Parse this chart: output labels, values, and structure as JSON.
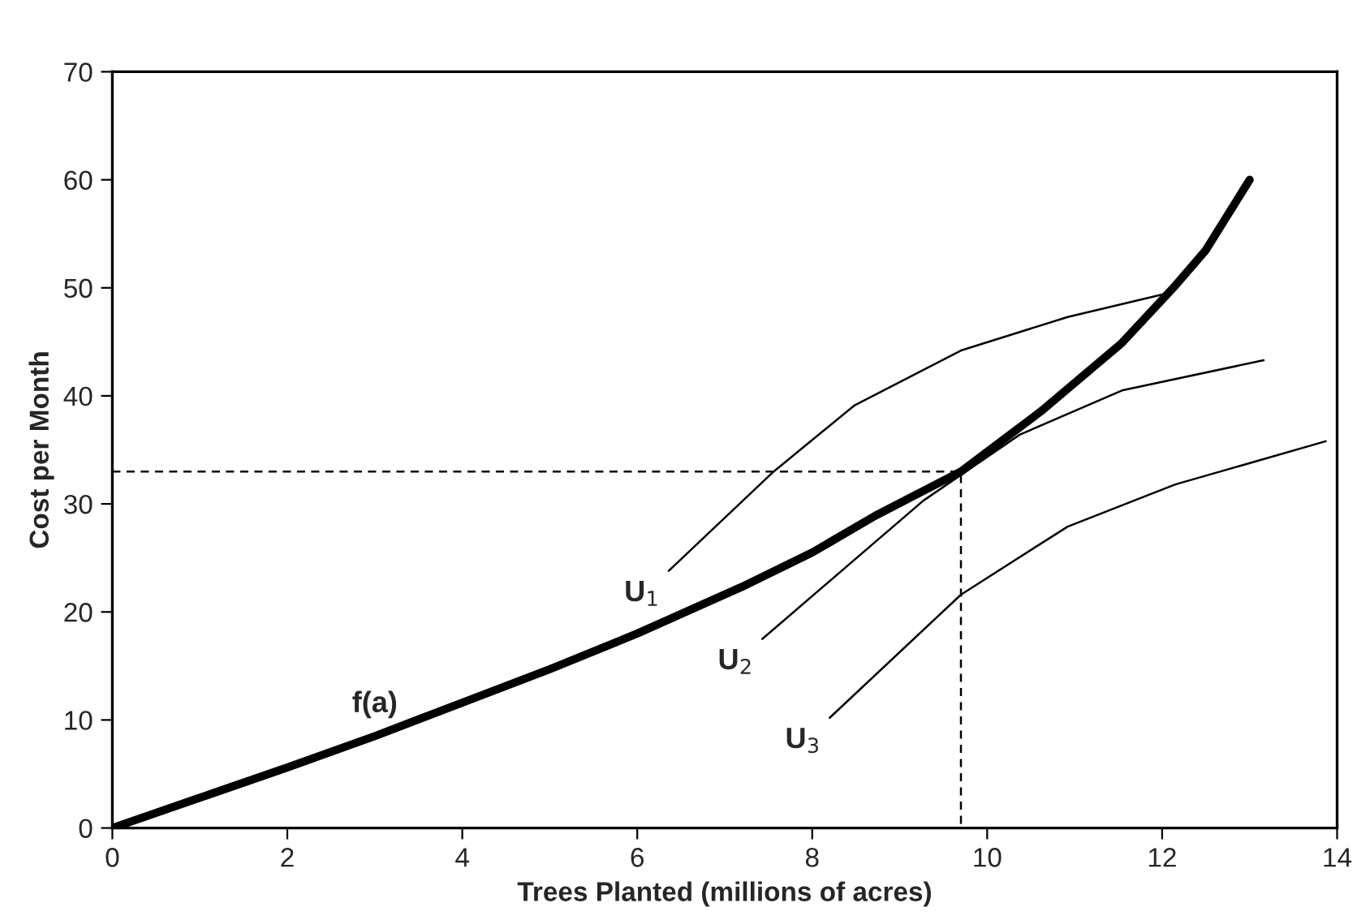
{
  "chart_data": {
    "type": "line",
    "xlabel": "Trees Planted (millions of acres)",
    "ylabel": "Cost per Month",
    "xlim": [
      0,
      14
    ],
    "xticks": [
      0,
      2,
      4,
      6,
      8,
      10,
      12,
      14
    ],
    "ylim": [
      0,
      70
    ],
    "yticks": [
      0,
      10,
      20,
      30,
      40,
      50,
      60,
      70
    ],
    "grid": false,
    "marker": "none",
    "series": [
      {
        "name": "f(a)",
        "color": "#000000",
        "x": [
          0,
          1,
          2,
          3,
          4,
          5,
          6,
          7.19,
          8,
          8.72,
          9.7,
          10.62,
          11.54,
          12.15,
          12.5,
          13
        ],
        "values": [
          0,
          2.8,
          5.6,
          8.5,
          11.6,
          14.7,
          18.0,
          22.3,
          25.5,
          28.9,
          33,
          38.6,
          44.9,
          50.2,
          53.5,
          60
        ]
      },
      {
        "name": "U$_{1}$",
        "color": "#000000",
        "x": [
          6.36,
          7.56,
          8.48,
          9.7,
          10.92,
          12.06
        ],
        "values": [
          23.8,
          33.0,
          39.1,
          44.2,
          47.3,
          49.5
        ]
      },
      {
        "name": "U$_{2}$",
        "color": "#000000",
        "x": [
          7.43,
          9.27,
          10.37,
          11.54,
          13.16
        ],
        "values": [
          17.5,
          30.3,
          36.4,
          40.5,
          43.3
        ]
      },
      {
        "name": "U$_{3}$",
        "color": "#000000",
        "x": [
          8.2,
          9.7,
          10.92,
          12.15,
          13.87
        ],
        "values": [
          10.2,
          21.6,
          27.9,
          31.8,
          35.8
        ]
      },
      {
        "color": "#000000",
        "line_style": "dashed",
        "x": [
          0,
          9.7,
          9.7
        ],
        "values": [
          33,
          33,
          0
        ]
      }
    ]
  }
}
